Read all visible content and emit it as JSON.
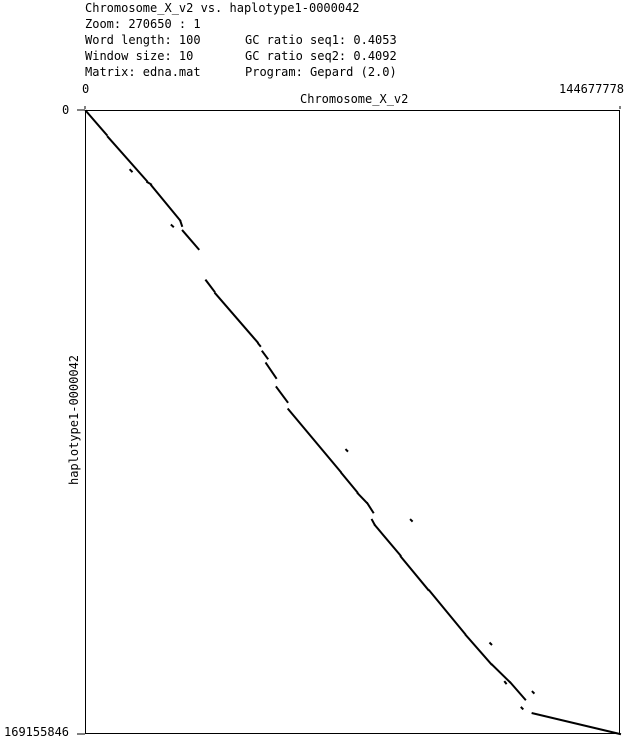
{
  "header": {
    "title": "Chromosome_X_v2 vs. haplotype1-0000042",
    "zoom": "Zoom: 270650 : 1",
    "word_length": "Word length: 100",
    "window_size": "Window size: 10",
    "matrix": "Matrix: edna.mat",
    "gc_seq1": "GC ratio seq1: 0.4053",
    "gc_seq2": "GC ratio seq2: 0.4092",
    "program": "Program: Gepard (2.0)"
  },
  "axes": {
    "x_label": "Chromosome_X_v2",
    "y_label": "haplotype1-0000042",
    "x_min_label": "0",
    "x_max_label": "144677778",
    "y_min_label": "0",
    "y_max_label": "169155846"
  },
  "chart_data": {
    "type": "scatter",
    "subtype": "dotplot",
    "x_sequence": "Chromosome_X_v2",
    "y_sequence": "haplotype1-0000042",
    "xlim": [
      0,
      144677778
    ],
    "ylim": [
      0,
      169155846
    ],
    "y_axis_inverted": true,
    "line_color": "#000000",
    "series": [
      {
        "segments": [
          {
            "x": [
              0,
              5600000
            ],
            "y": [
              0,
              6500000
            ]
          },
          {
            "x": [
              5900000,
              16500000
            ],
            "y": [
              7000000,
              19000000
            ]
          },
          {
            "x": [
              16600000,
              17600000
            ],
            "y": [
              19300000,
              19900000
            ]
          },
          {
            "x": [
              17700000,
              25500000
            ],
            "y": [
              20200000,
              29700000
            ]
          },
          {
            "x": [
              25600000,
              26000000
            ],
            "y": [
              30000000,
              31200000
            ]
          },
          {
            "x": [
              26200000,
              30500000
            ],
            "y": [
              32500000,
              37500000
            ]
          },
          {
            "x": [
              32500000,
              34800000
            ],
            "y": [
              46000000,
              49000000
            ]
          },
          {
            "x": [
              35000000,
              46500000
            ],
            "y": [
              49500000,
              62800000
            ]
          },
          {
            "x": [
              46700000,
              47200000
            ],
            "y": [
              63200000,
              63800000
            ]
          },
          {
            "x": [
              47800000,
              49200000
            ],
            "y": [
              65300000,
              67200000
            ]
          },
          {
            "x": [
              48800000,
              51500000
            ],
            "y": [
              68500000,
              72500000
            ]
          },
          {
            "x": [
              51600000,
              54600000
            ],
            "y": [
              75000000,
              79000000
            ]
          },
          {
            "x": [
              54800000,
              69000000
            ],
            "y": [
              81000000,
              98000000
            ]
          },
          {
            "x": [
              69200000,
              73500000
            ],
            "y": [
              98300000,
              103500000
            ]
          },
          {
            "x": [
              73600000,
              76000000
            ],
            "y": [
              103800000,
              106300000
            ]
          },
          {
            "x": [
              76200000,
              77800000
            ],
            "y": [
              106500000,
              109000000
            ]
          },
          {
            "x": [
              77500000,
              78200000
            ],
            "y": [
              111000000,
              112300000
            ]
          },
          {
            "x": [
              78300000,
              85200000
            ],
            "y": [
              112500000,
              120700000
            ]
          },
          {
            "x": [
              85300000,
              92700000
            ],
            "y": [
              121000000,
              130000000
            ]
          },
          {
            "x": [
              93000000,
              102700000
            ],
            "y": [
              130200000,
              142000000
            ]
          },
          {
            "x": [
              102900000,
              109800000
            ],
            "y": [
              142300000,
              150200000
            ]
          },
          {
            "x": [
              110000000,
              114800000
            ],
            "y": [
              150300000,
              155000000
            ]
          },
          {
            "x": [
              115000000,
              119000000
            ],
            "y": [
              155200000,
              159800000
            ]
          },
          {
            "x": [
              121000000,
              144677778
            ],
            "y": [
              163500000,
              169155846
            ]
          },
          {
            "x": [
              88000000,
              88300000
            ],
            "y": [
              111000000,
              111300000
            ]
          },
          {
            "x": [
              70500000,
              70800000
            ],
            "y": [
              92000000,
              92300000
            ]
          },
          {
            "x": [
              109500000,
              109800000
            ],
            "y": [
              144500000,
              144800000
            ]
          },
          {
            "x": [
              113500000,
              113800000
            ],
            "y": [
              155000000,
              155400000
            ]
          },
          {
            "x": [
              118000000,
              118300000
            ],
            "y": [
              162000000,
              162300000
            ]
          },
          {
            "x": [
              121000000,
              121300000
            ],
            "y": [
              157700000,
              158000000
            ]
          },
          {
            "x": [
              12000000,
              12400000
            ],
            "y": [
              16000000,
              16400000
            ]
          },
          {
            "x": [
              23200000,
              23600000
            ],
            "y": [
              31000000,
              31400000
            ]
          }
        ]
      }
    ],
    "grid": false,
    "legend": "none"
  }
}
